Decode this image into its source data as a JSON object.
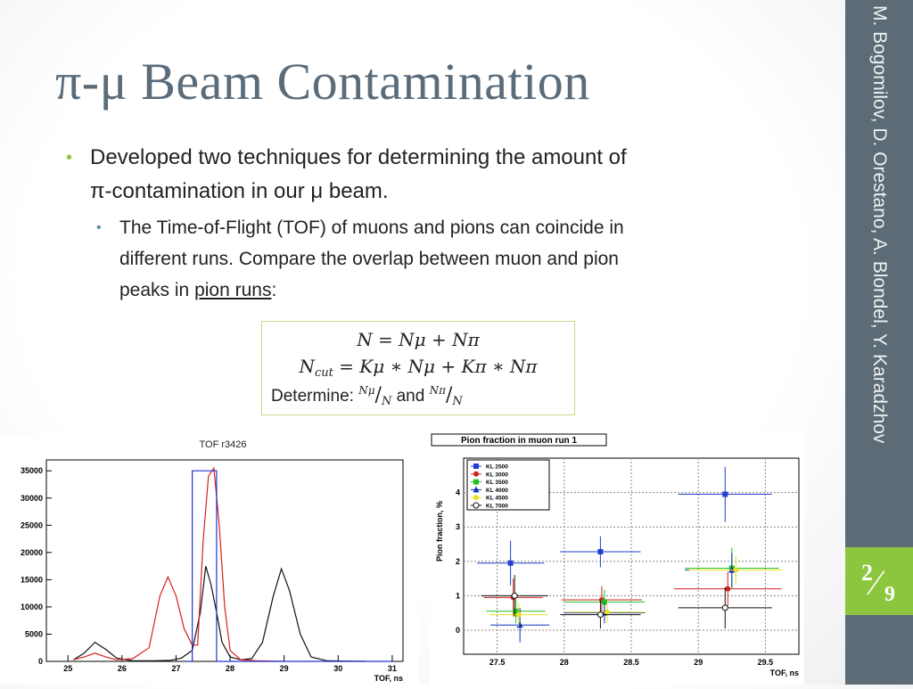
{
  "slide": {
    "title": "π-μ Beam Contamination",
    "author": "M. Bogomilov, D. Orestano, A. Blondel, Y. Karadzhov",
    "page_number": "2",
    "page_total": "9",
    "accent": "#8cc63f",
    "sidebar_color": "#5c6b75"
  },
  "bullets": {
    "level1_line1": "Developed two techniques for determining the amount of",
    "level1_line2": "π-contamination in our μ beam.",
    "level2_line1": "The Time-of-Flight (TOF) of muons and pions can coincide in",
    "level2_line2": "different runs. Compare the overlap between muon and pion",
    "level2_line3_pre": "peaks in ",
    "level2_line3_link": "pion runs",
    "level2_line3_post": ":"
  },
  "formula": {
    "eq1": "N = Nμ + Nπ",
    "eq2_lhs": "N",
    "eq2_sub": "cut",
    "eq2_rhs": " = Kμ ∗ Nμ + Kπ ∗ Nπ",
    "determine_label": "Determine:",
    "frac1_num": "Nμ",
    "frac_den": "N",
    "and_label": "and",
    "frac2_num": "Nπ"
  },
  "chart_data": [
    {
      "type": "line",
      "title": "TOF r3426",
      "xlabel": "TOF, ns",
      "ylabel": "",
      "xlim": [
        24.6,
        31.2
      ],
      "ylim": [
        0,
        37000
      ],
      "xticks": [
        25,
        26,
        27,
        28,
        29,
        30,
        31
      ],
      "yticks": [
        0,
        5000,
        10000,
        15000,
        20000,
        25000,
        30000,
        35000
      ],
      "colors": {
        "black": "#111111",
        "red": "#d62020",
        "blue": "#2233cc"
      },
      "series": [
        {
          "color": "black",
          "points": [
            [
              25.1,
              300
            ],
            [
              25.3,
              1500
            ],
            [
              25.5,
              3500
            ],
            [
              25.7,
              2200
            ],
            [
              25.9,
              600
            ],
            [
              26.2,
              100
            ],
            [
              26.6,
              100
            ],
            [
              26.9,
              200
            ],
            [
              27.1,
              600
            ],
            [
              27.3,
              2000
            ],
            [
              27.45,
              9000
            ],
            [
              27.55,
              17500
            ],
            [
              27.65,
              14000
            ],
            [
              27.75,
              9000
            ],
            [
              27.85,
              3500
            ],
            [
              28.0,
              800
            ],
            [
              28.2,
              300
            ],
            [
              28.4,
              500
            ],
            [
              28.6,
              3500
            ],
            [
              28.8,
              12000
            ],
            [
              28.95,
              17000
            ],
            [
              29.1,
              13000
            ],
            [
              29.3,
              5000
            ],
            [
              29.5,
              800
            ],
            [
              29.8,
              100
            ],
            [
              30.5,
              0
            ]
          ]
        },
        {
          "color": "red",
          "points": [
            [
              25.1,
              300
            ],
            [
              25.3,
              800
            ],
            [
              25.5,
              1500
            ],
            [
              25.7,
              800
            ],
            [
              25.9,
              300
            ],
            [
              26.2,
              500
            ],
            [
              26.5,
              2500
            ],
            [
              26.7,
              12000
            ],
            [
              26.85,
              15500
            ],
            [
              27.0,
              12000
            ],
            [
              27.15,
              6000
            ],
            [
              27.3,
              3000
            ],
            [
              27.4,
              3000
            ],
            [
              27.5,
              22000
            ],
            [
              27.6,
              34000
            ],
            [
              27.7,
              35500
            ],
            [
              27.8,
              25000
            ],
            [
              27.9,
              10000
            ],
            [
              28.0,
              2000
            ],
            [
              28.2,
              300
            ],
            [
              28.5,
              100
            ],
            [
              29.0,
              0
            ]
          ]
        },
        {
          "color": "blue",
          "points": [
            [
              27.2,
              0
            ],
            [
              27.3,
              0
            ],
            [
              27.3,
              35000
            ],
            [
              27.75,
              35000
            ],
            [
              27.75,
              0
            ],
            [
              31.0,
              0
            ]
          ]
        }
      ]
    },
    {
      "type": "scatter",
      "title": "Pion fraction in muon run 1",
      "xlabel": "TOF, ns",
      "ylabel": "Pion fraction, %",
      "xlim": [
        27.25,
        29.75
      ],
      "ylim": [
        -0.7,
        5.0
      ],
      "xticks": [
        27.5,
        28,
        28.5,
        29,
        29.5
      ],
      "yticks": [
        0,
        1,
        2,
        3,
        4
      ],
      "legend_position": "top-left",
      "series": [
        {
          "name": "KL 2500",
          "color": "#1f3fd0",
          "marker": "square",
          "points": [
            [
              27.6,
              1.95,
              0.25,
              0.65
            ],
            [
              28.27,
              2.28,
              0.3,
              0.45
            ],
            [
              29.2,
              3.95,
              0.35,
              0.8
            ]
          ]
        },
        {
          "name": "KL 3000",
          "color": "#d02020",
          "marker": "circle",
          "points": [
            [
              27.62,
              0.95,
              0.22,
              0.55
            ],
            [
              28.28,
              0.88,
              0.3,
              0.4
            ],
            [
              29.22,
              1.2,
              0.4,
              0.5
            ]
          ]
        },
        {
          "name": "KL 3500",
          "color": "#20c020",
          "marker": "square",
          "points": [
            [
              27.64,
              0.55,
              0.22,
              0.35
            ],
            [
              28.3,
              0.82,
              0.3,
              0.35
            ],
            [
              29.25,
              1.8,
              0.35,
              0.6
            ]
          ]
        },
        {
          "name": "KL 4000",
          "color": "#1030c0",
          "marker": "triangle",
          "points": [
            [
              27.67,
              0.15,
              0.22,
              0.5
            ],
            [
              28.3,
              0.5,
              0.3,
              0.3
            ],
            [
              29.25,
              1.75,
              0.35,
              0.5
            ]
          ]
        },
        {
          "name": "KL 4500",
          "color": "#e8e020",
          "marker": "circle",
          "points": [
            [
              27.66,
              0.45,
              0.22,
              0.35
            ],
            [
              28.32,
              0.52,
              0.3,
              0.3
            ],
            [
              29.28,
              1.75,
              0.35,
              0.4
            ]
          ]
        },
        {
          "name": "KL 7000",
          "color": "#111111",
          "marker": "open-circle",
          "points": [
            [
              27.63,
              1.0,
              0.25,
              0.6
            ],
            [
              28.27,
              0.45,
              0.3,
              0.4
            ],
            [
              29.2,
              0.65,
              0.35,
              0.6
            ]
          ]
        }
      ]
    }
  ]
}
